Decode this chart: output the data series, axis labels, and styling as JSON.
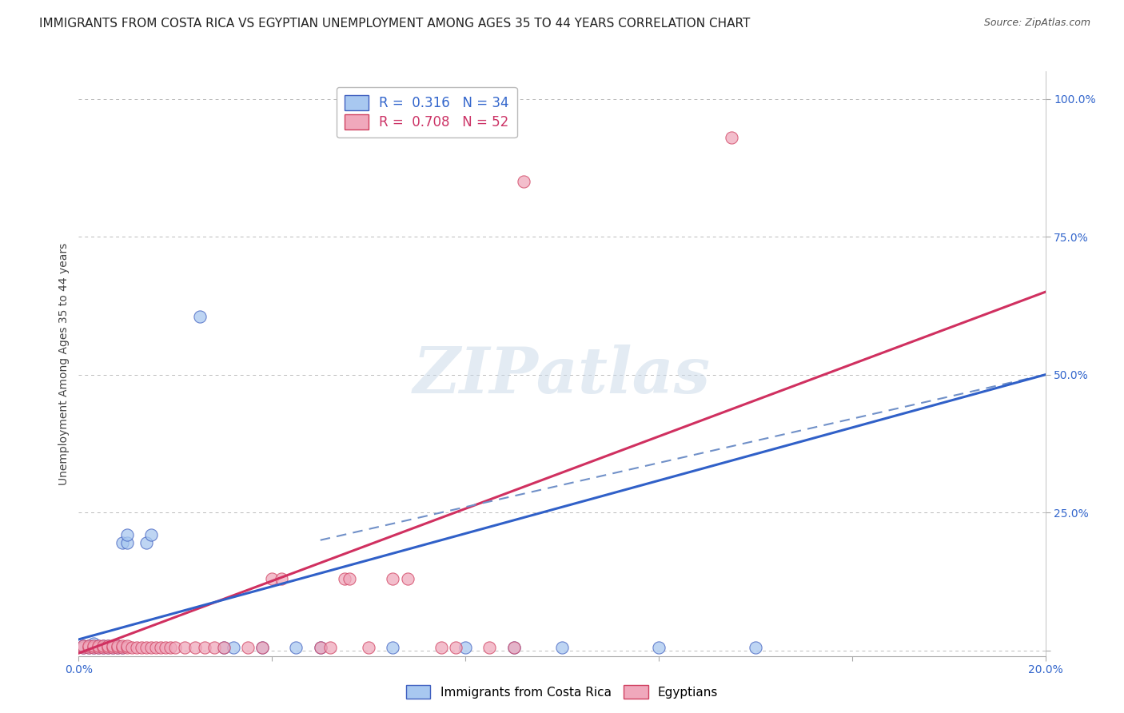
{
  "title": "IMMIGRANTS FROM COSTA RICA VS EGYPTIAN UNEMPLOYMENT AMONG AGES 35 TO 44 YEARS CORRELATION CHART",
  "source": "Source: ZipAtlas.com",
  "ylabel": "Unemployment Among Ages 35 to 44 years",
  "watermark": "ZIPatlas",
  "xlim": [
    0.0,
    0.2
  ],
  "ylim": [
    -0.01,
    1.05
  ],
  "x_ticks": [
    0.0,
    0.04,
    0.08,
    0.12,
    0.16,
    0.2
  ],
  "x_tick_labels": [
    "0.0%",
    "",
    "",
    "",
    "",
    "20.0%"
  ],
  "y_ticks": [
    0.0,
    0.25,
    0.5,
    0.75,
    1.0
  ],
  "y_tick_labels": [
    "",
    "25.0%",
    "50.0%",
    "75.0%",
    "100.0%"
  ],
  "blue_label": "Immigrants from Costa Rica",
  "pink_label": "Egyptians",
  "blue_R": "0.316",
  "blue_N": "34",
  "pink_R": "0.708",
  "pink_N": "52",
  "blue_color": "#a8c8f0",
  "pink_color": "#f0a8bc",
  "blue_edge_color": "#4060c0",
  "pink_edge_color": "#d04060",
  "blue_line_color": "#3060c8",
  "pink_line_color": "#d03060",
  "blue_dash_color": "#7090c8",
  "blue_scatter": [
    [
      0.001,
      0.005
    ],
    [
      0.001,
      0.008
    ],
    [
      0.002,
      0.005
    ],
    [
      0.002,
      0.008
    ],
    [
      0.003,
      0.005
    ],
    [
      0.003,
      0.008
    ],
    [
      0.003,
      0.012
    ],
    [
      0.004,
      0.005
    ],
    [
      0.004,
      0.008
    ],
    [
      0.005,
      0.005
    ],
    [
      0.005,
      0.008
    ],
    [
      0.006,
      0.005
    ],
    [
      0.006,
      0.008
    ],
    [
      0.007,
      0.005
    ],
    [
      0.008,
      0.005
    ],
    [
      0.008,
      0.008
    ],
    [
      0.009,
      0.005
    ],
    [
      0.009,
      0.195
    ],
    [
      0.01,
      0.195
    ],
    [
      0.01,
      0.21
    ],
    [
      0.014,
      0.195
    ],
    [
      0.015,
      0.21
    ],
    [
      0.025,
      0.605
    ],
    [
      0.03,
      0.005
    ],
    [
      0.032,
      0.005
    ],
    [
      0.038,
      0.005
    ],
    [
      0.045,
      0.005
    ],
    [
      0.05,
      0.005
    ],
    [
      0.065,
      0.005
    ],
    [
      0.08,
      0.005
    ],
    [
      0.09,
      0.005
    ],
    [
      0.1,
      0.005
    ],
    [
      0.12,
      0.005
    ],
    [
      0.14,
      0.005
    ]
  ],
  "pink_scatter": [
    [
      0.001,
      0.005
    ],
    [
      0.001,
      0.008
    ],
    [
      0.002,
      0.005
    ],
    [
      0.002,
      0.008
    ],
    [
      0.003,
      0.005
    ],
    [
      0.003,
      0.008
    ],
    [
      0.004,
      0.005
    ],
    [
      0.004,
      0.008
    ],
    [
      0.005,
      0.005
    ],
    [
      0.005,
      0.008
    ],
    [
      0.006,
      0.005
    ],
    [
      0.006,
      0.008
    ],
    [
      0.007,
      0.005
    ],
    [
      0.007,
      0.008
    ],
    [
      0.008,
      0.005
    ],
    [
      0.008,
      0.008
    ],
    [
      0.009,
      0.005
    ],
    [
      0.009,
      0.008
    ],
    [
      0.01,
      0.005
    ],
    [
      0.01,
      0.008
    ],
    [
      0.011,
      0.005
    ],
    [
      0.012,
      0.005
    ],
    [
      0.013,
      0.005
    ],
    [
      0.014,
      0.005
    ],
    [
      0.015,
      0.005
    ],
    [
      0.016,
      0.005
    ],
    [
      0.017,
      0.005
    ],
    [
      0.018,
      0.005
    ],
    [
      0.019,
      0.005
    ],
    [
      0.02,
      0.005
    ],
    [
      0.022,
      0.005
    ],
    [
      0.024,
      0.005
    ],
    [
      0.026,
      0.005
    ],
    [
      0.028,
      0.005
    ],
    [
      0.03,
      0.005
    ],
    [
      0.035,
      0.005
    ],
    [
      0.038,
      0.005
    ],
    [
      0.04,
      0.13
    ],
    [
      0.042,
      0.13
    ],
    [
      0.05,
      0.005
    ],
    [
      0.052,
      0.005
    ],
    [
      0.055,
      0.13
    ],
    [
      0.056,
      0.13
    ],
    [
      0.06,
      0.005
    ],
    [
      0.065,
      0.13
    ],
    [
      0.068,
      0.13
    ],
    [
      0.075,
      0.005
    ],
    [
      0.078,
      0.005
    ],
    [
      0.085,
      0.005
    ],
    [
      0.09,
      0.005
    ],
    [
      0.092,
      0.85
    ],
    [
      0.135,
      0.93
    ]
  ],
  "blue_line_x": [
    0.0,
    0.2
  ],
  "blue_line_y": [
    0.02,
    0.5
  ],
  "pink_line_x": [
    0.0,
    0.2
  ],
  "pink_line_y": [
    -0.005,
    0.65
  ],
  "dash_line_x": [
    0.05,
    0.2
  ],
  "dash_line_y": [
    0.2,
    0.5
  ],
  "bg_color": "#ffffff",
  "grid_color": "#bbbbbb",
  "title_fontsize": 11,
  "axis_label_fontsize": 10,
  "tick_fontsize": 10
}
